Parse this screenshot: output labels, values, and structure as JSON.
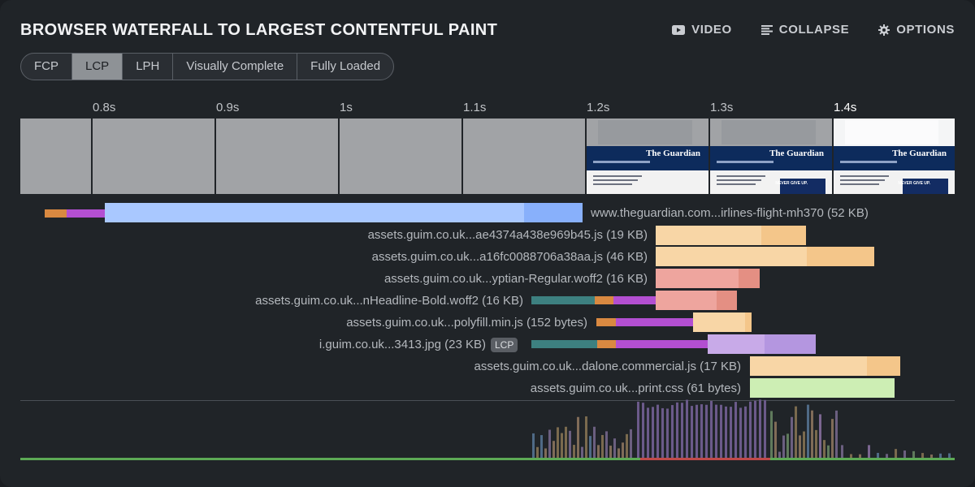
{
  "title": "BROWSER WATERFALL TO LARGEST CONTENTFUL PAINT",
  "actions": {
    "video": {
      "label": "VIDEO",
      "icon": "video-icon"
    },
    "collapse": {
      "label": "COLLAPSE",
      "icon": "list-icon"
    },
    "options": {
      "label": "OPTIONS",
      "icon": "gear-icon"
    }
  },
  "tabs": [
    {
      "label": "FCP",
      "active": false
    },
    {
      "label": "LCP",
      "active": true
    },
    {
      "label": "LPH",
      "active": false
    },
    {
      "label": "Visually Complete",
      "active": false
    },
    {
      "label": "Fully Loaded",
      "active": false
    }
  ],
  "timeline": {
    "ticks": [
      "0.8s",
      "0.9s",
      "1s",
      "1.1s",
      "1.2s",
      "1.3s",
      "1.4s"
    ],
    "frames": [
      "blank",
      "blank",
      "blank",
      "blank",
      "loading",
      "loading",
      "loaded"
    ],
    "frame_logo": "The Guardian",
    "ad_text": "NEVER GIVE UP."
  },
  "requests": [
    {
      "label": "www.theguardian.com...irlines-flight-mh370 (52 KB)",
      "type": "document",
      "badge": ""
    },
    {
      "label": "assets.guim.co.uk...ae4374a438e969b45.js (19 KB)",
      "type": "script",
      "badge": ""
    },
    {
      "label": "assets.guim.co.uk...a16fc0088706a38aa.js (46 KB)",
      "type": "script",
      "badge": ""
    },
    {
      "label": "assets.guim.co.uk...yptian-Regular.woff2 (16 KB)",
      "type": "font",
      "badge": ""
    },
    {
      "label": "assets.guim.co.uk...nHeadline-Bold.woff2 (16 KB)",
      "type": "font",
      "badge": ""
    },
    {
      "label": "assets.guim.co.uk...polyfill.min.js (152 bytes)",
      "type": "script",
      "badge": ""
    },
    {
      "label": "i.guim.co.uk...3413.jpg (23 KB)",
      "type": "image",
      "badge": "LCP"
    },
    {
      "label": "assets.guim.co.uk...dalone.commercial.js (17 KB)",
      "type": "script",
      "badge": ""
    },
    {
      "label": "assets.guim.co.uk...print.css (61 bytes)",
      "type": "css",
      "badge": ""
    }
  ],
  "colors": {
    "background": "#202428",
    "document": "#a9c8ff",
    "document_download": "#88b0fb",
    "script": "#f8d6a6",
    "script_download": "#f4c68a",
    "font": "#eea59e",
    "font_download": "#e48f83",
    "image": "#c8aae8",
    "image_download": "#b496e0",
    "css": "#cdeeb4",
    "dns": "#d98941",
    "connect": "#b34fd1",
    "ssl": "#3d8080",
    "cpu_baseline": "#5daa55",
    "cpu_busy": "#c04a4a"
  }
}
